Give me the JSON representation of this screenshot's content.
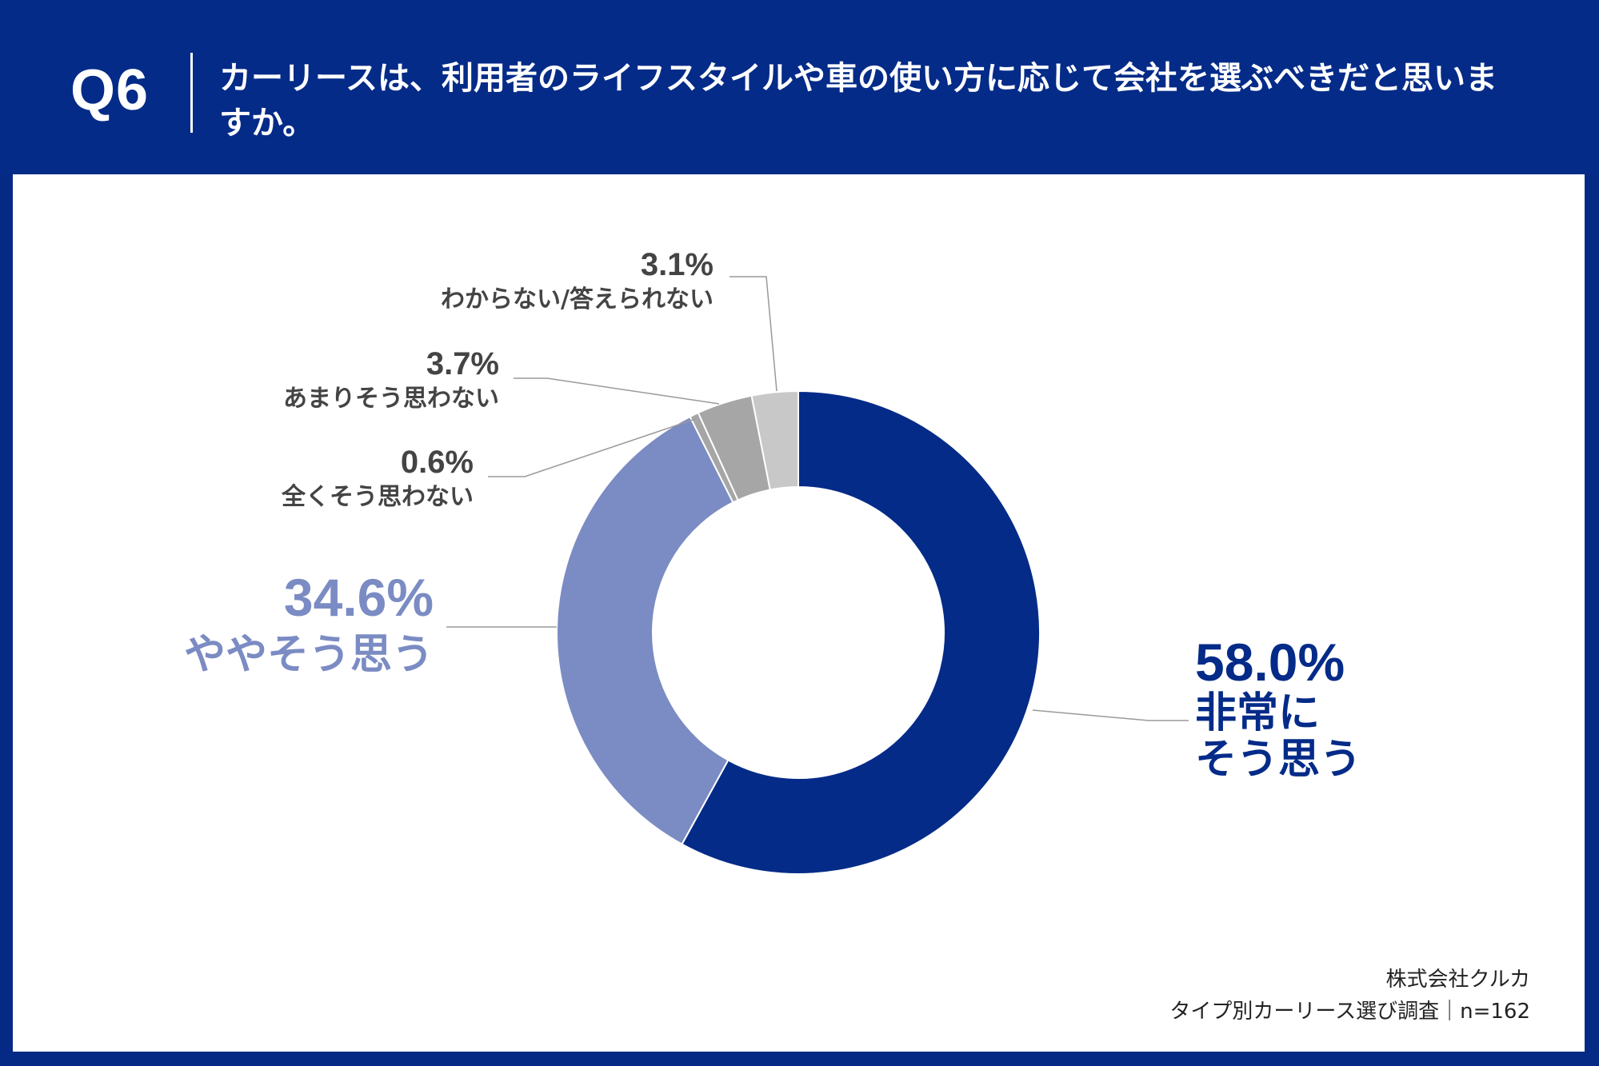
{
  "header": {
    "question_number": "Q6",
    "question_text": "カーリースは、利用者のライフスタイルや車の使い方に応じて会社を選ぶべきだと思いますか。"
  },
  "footer": {
    "company": "株式会社クルカ",
    "survey": "タイプ別カーリース選び調査｜n=162"
  },
  "colors": {
    "header_bg": "#042b88",
    "strongly_agree": "#042b88",
    "somewhat_agree": "#7b8bc3",
    "strongly_disagree": "#a6a6a6",
    "somewhat_disagree": "#a6a6a6",
    "dont_know": "#c8c8c8",
    "leader_line": "#9a9a9a",
    "small_label": "#444444"
  },
  "chart_data": {
    "type": "pie",
    "donut": true,
    "title": "",
    "categories": [
      "非常にそう思う",
      "ややそう思う",
      "全くそう思わない",
      "あまりそう思わない",
      "わからない/答えられない"
    ],
    "values": [
      58.0,
      34.6,
      0.6,
      3.7,
      3.1
    ],
    "value_labels": [
      "58.0%",
      "34.6%",
      "0.6%",
      "3.7%",
      "3.1%"
    ],
    "label_lines": [
      [
        "非常に",
        "そう思う"
      ],
      [
        "ややそう思う"
      ],
      [
        "全くそう思わない"
      ],
      [
        "あまりそう思わない"
      ],
      [
        "わからない/答えられない"
      ]
    ],
    "unit": "%",
    "start": "top",
    "direction": "clockwise"
  }
}
